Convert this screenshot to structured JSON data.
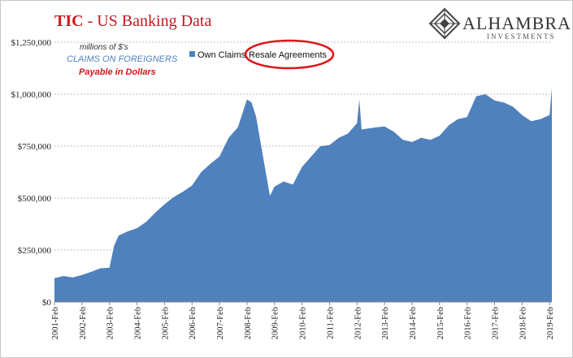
{
  "header": {
    "title_highlight": "TIC",
    "title_rest": " - US Banking Data"
  },
  "logo": {
    "name": "ALHAMBRA",
    "sub": "INVESTMENTS"
  },
  "notes": {
    "line1": "millions of $'s",
    "line2": "CLAIMS ON FOREIGNERS",
    "line3": "Payable in Dollars"
  },
  "legend": {
    "label": "Own Claims",
    "annotation": "Resale Agreements",
    "annotation_color": "#e0141b"
  },
  "chart_data": {
    "type": "area",
    "title": "TIC - US Banking Data",
    "series": [
      {
        "name": "Own Claims",
        "color": "#4f81bd",
        "x": [
          "2001-02",
          "2001-06",
          "2001-10",
          "2002-02",
          "2002-06",
          "2002-10",
          "2003-02",
          "2003-04",
          "2003-06",
          "2003-10",
          "2004-02",
          "2004-06",
          "2004-10",
          "2005-02",
          "2005-06",
          "2005-10",
          "2006-02",
          "2006-06",
          "2006-10",
          "2007-02",
          "2007-06",
          "2007-10",
          "2008-02",
          "2008-04",
          "2008-06",
          "2008-09",
          "2008-12",
          "2009-02",
          "2009-06",
          "2009-10",
          "2010-02",
          "2010-06",
          "2010-10",
          "2011-02",
          "2011-06",
          "2011-10",
          "2012-02",
          "2012-03",
          "2012-04",
          "2012-10",
          "2013-02",
          "2013-06",
          "2013-10",
          "2014-02",
          "2014-06",
          "2014-10",
          "2015-02",
          "2015-06",
          "2015-10",
          "2016-02",
          "2016-06",
          "2016-10",
          "2017-02",
          "2017-06",
          "2017-10",
          "2018-02",
          "2018-06",
          "2018-10",
          "2019-02",
          "2019-03"
        ],
        "values": [
          115000,
          125000,
          118000,
          130000,
          145000,
          162000,
          165000,
          270000,
          320000,
          340000,
          355000,
          385000,
          430000,
          470000,
          505000,
          530000,
          560000,
          625000,
          665000,
          700000,
          790000,
          840000,
          975000,
          960000,
          890000,
          700000,
          510000,
          555000,
          580000,
          565000,
          650000,
          700000,
          750000,
          755000,
          790000,
          810000,
          860000,
          975000,
          830000,
          840000,
          845000,
          820000,
          780000,
          770000,
          790000,
          780000,
          800000,
          850000,
          880000,
          890000,
          990000,
          1000000,
          970000,
          960000,
          940000,
          900000,
          870000,
          880000,
          900000,
          1030000
        ]
      }
    ],
    "ylim": [
      0,
      1250000
    ],
    "yticks": [
      "$0",
      "$250,000",
      "$500,000",
      "$750,000",
      "$1,000,000",
      "$1,250,000"
    ],
    "ytick_values": [
      0,
      250000,
      500000,
      750000,
      1000000,
      1250000
    ],
    "xticks": [
      "2001-Feb",
      "2002-Feb",
      "2003-Feb",
      "2004-Feb",
      "2005-Feb",
      "2006-Feb",
      "2007-Feb",
      "2008-Feb",
      "2009-Feb",
      "2010-Feb",
      "2011-Feb",
      "2012-Feb",
      "2013-Feb",
      "2014-Feb",
      "2015-Feb",
      "2016-Feb",
      "2017-Feb",
      "2018-Feb",
      "2019-Feb"
    ],
    "xtick_values": [
      "2001-02",
      "2002-02",
      "2003-02",
      "2004-02",
      "2005-02",
      "2006-02",
      "2007-02",
      "2008-02",
      "2009-02",
      "2010-02",
      "2011-02",
      "2012-02",
      "2013-02",
      "2014-02",
      "2015-02",
      "2016-02",
      "2017-02",
      "2018-02",
      "2019-02"
    ],
    "grid": true,
    "legend_position": "top-center"
  }
}
